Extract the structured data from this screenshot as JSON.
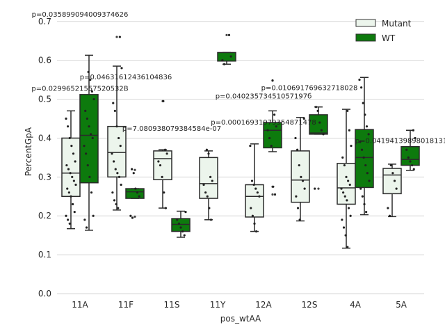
{
  "chart_data": {
    "type": "box",
    "xlabel": "pos_wtAA",
    "ylabel": "PercentGpA",
    "ylim": [
      0.0,
      0.73
    ],
    "yticks": [
      "0.0",
      "0.1",
      "0.2",
      "0.3",
      "0.4",
      "0.5",
      "0.6",
      "0.7"
    ],
    "grid": "horizontal",
    "legend_position": "top-right",
    "categories": [
      "11A",
      "11F",
      "11S",
      "11Y",
      "12A",
      "12S",
      "4A",
      "5A"
    ],
    "series": [
      {
        "name": "Mutant",
        "color": "#ecf5ec",
        "boxes": [
          {
            "q1": 0.25,
            "median": 0.31,
            "q3": 0.4,
            "whisker_low": 0.167,
            "whisker_high": 0.47,
            "outliers": []
          },
          {
            "q1": 0.3,
            "median": 0.363,
            "q3": 0.43,
            "whisker_low": 0.215,
            "whisker_high": 0.585,
            "outliers": [
              0.66
            ]
          },
          {
            "q1": 0.293,
            "median": 0.347,
            "q3": 0.367,
            "whisker_low": 0.22,
            "whisker_high": 0.37,
            "outliers": [
              0.495
            ]
          },
          {
            "q1": 0.245,
            "median": 0.283,
            "q3": 0.35,
            "whisker_low": 0.19,
            "whisker_high": 0.367,
            "outliers": []
          },
          {
            "q1": 0.197,
            "median": 0.25,
            "q3": 0.28,
            "whisker_low": 0.16,
            "whisker_high": 0.385,
            "outliers": []
          },
          {
            "q1": 0.235,
            "median": 0.292,
            "q3": 0.367,
            "whisker_low": 0.187,
            "whisker_high": 0.453,
            "outliers": []
          },
          {
            "q1": 0.23,
            "median": 0.272,
            "q3": 0.335,
            "whisker_low": 0.117,
            "whisker_high": 0.474,
            "outliers": []
          },
          {
            "q1": 0.257,
            "median": 0.305,
            "q3": 0.322,
            "whisker_low": 0.198,
            "whisker_high": 0.333,
            "outliers": []
          }
        ]
      },
      {
        "name": "WT",
        "color": "#0d7a0d",
        "boxes": [
          {
            "q1": 0.285,
            "median": 0.407,
            "q3": 0.512,
            "whisker_low": 0.163,
            "whisker_high": 0.613,
            "outliers": []
          },
          {
            "q1": 0.245,
            "median": 0.262,
            "q3": 0.27,
            "whisker_low": 0.245,
            "whisker_high": 0.27,
            "outliers": [
              0.318,
              0.198
            ]
          },
          {
            "q1": 0.16,
            "median": 0.178,
            "q3": 0.193,
            "whisker_low": 0.145,
            "whisker_high": 0.212,
            "outliers": []
          },
          {
            "q1": 0.598,
            "median": 0.598,
            "q3": 0.62,
            "whisker_low": 0.59,
            "whisker_high": 0.62,
            "outliers": [
              0.665
            ]
          },
          {
            "q1": 0.375,
            "median": 0.42,
            "q3": 0.44,
            "whisker_low": 0.365,
            "whisker_high": 0.47,
            "outliers": [
              0.548,
              0.275,
              0.255
            ]
          },
          {
            "q1": 0.41,
            "median": 0.413,
            "q3": 0.46,
            "whisker_low": 0.41,
            "whisker_high": 0.48,
            "outliers": [
              0.27
            ]
          },
          {
            "q1": 0.273,
            "median": 0.35,
            "q3": 0.422,
            "whisker_low": 0.203,
            "whisker_high": 0.556,
            "outliers": []
          },
          {
            "q1": 0.33,
            "median": 0.345,
            "q3": 0.378,
            "whisker_low": 0.317,
            "whisker_high": 0.42,
            "outliers": []
          }
        ]
      }
    ],
    "points": [
      [
        [
          0.45,
          0.43,
          0.4,
          0.38,
          0.36,
          0.34,
          0.33,
          0.32,
          0.31,
          0.3,
          0.29,
          0.28,
          0.27,
          0.26,
          0.25,
          0.23,
          0.21,
          0.2,
          0.19,
          0.18
        ],
        [
          0.57,
          0.55,
          0.52,
          0.5,
          0.47,
          0.45,
          0.43,
          0.41,
          0.4,
          0.38,
          0.36,
          0.33,
          0.3,
          0.26,
          0.2,
          0.19,
          0.17
        ]
      ],
      [
        [
          0.66,
          0.58,
          0.49,
          0.47,
          0.43,
          0.4,
          0.38,
          0.36,
          0.34,
          0.32,
          0.31,
          0.3,
          0.28,
          0.26,
          0.24,
          0.23,
          0.22
        ],
        [
          0.32,
          0.31,
          0.27,
          0.26,
          0.25,
          0.2,
          0.195
        ]
      ],
      [
        [
          0.495,
          0.37,
          0.36,
          0.34,
          0.33,
          0.3,
          0.26,
          0.22
        ],
        [
          0.21,
          0.19,
          0.18,
          0.17,
          0.16,
          0.15
        ]
      ],
      [
        [
          0.37,
          0.36,
          0.3,
          0.29,
          0.28,
          0.26,
          0.25,
          0.22,
          0.19
        ],
        [
          0.665,
          0.61,
          0.6,
          0.59
        ]
      ],
      [
        [
          0.38,
          0.29,
          0.28,
          0.27,
          0.26,
          0.25,
          0.22,
          0.2,
          0.18,
          0.16
        ],
        [
          0.548,
          0.46,
          0.43,
          0.42,
          0.4,
          0.38,
          0.275,
          0.255
        ]
      ],
      [
        [
          0.45,
          0.4,
          0.37,
          0.33,
          0.3,
          0.29,
          0.27,
          0.25,
          0.22,
          0.19
        ],
        [
          0.48,
          0.47,
          0.44,
          0.42,
          0.41,
          0.27
        ]
      ],
      [
        [
          0.47,
          0.42,
          0.38,
          0.35,
          0.33,
          0.3,
          0.29,
          0.28,
          0.27,
          0.26,
          0.25,
          0.24,
          0.22,
          0.2,
          0.19,
          0.17,
          0.15,
          0.12
        ],
        [
          0.55,
          0.53,
          0.49,
          0.46,
          0.43,
          0.41,
          0.39,
          0.37,
          0.35,
          0.33,
          0.31,
          0.29,
          0.27,
          0.25,
          0.23,
          0.21
        ]
      ],
      [
        [
          0.33,
          0.31,
          0.29,
          0.27,
          0.22,
          0.2
        ],
        [
          0.42,
          0.4,
          0.37,
          0.35,
          0.34,
          0.33,
          0.32
        ]
      ]
    ],
    "annotations": [
      {
        "text": "p=0.035899094009374626",
        "x": "11A",
        "y": 0.712
      },
      {
        "text": "p=0.02996521557520532B",
        "x": "11A",
        "y": 0.522
      },
      {
        "text": "p=0.04631612436104836",
        "x": "11F",
        "y": 0.551
      },
      {
        "text": "p=7.080938079384584e-07",
        "x": "11S",
        "y": 0.419
      },
      {
        "text": "p=0.00016931979354871478",
        "x": "12A",
        "y": 0.435
      },
      {
        "text": "p=0.04023573451057197б",
        "x": "12A",
        "y": 0.502
      },
      {
        "text": "p=0.010691769632718028",
        "x": "12S",
        "y": 0.523
      },
      {
        "text": "p=0.04194139898018131",
        "x": "5A",
        "y": 0.387
      }
    ]
  }
}
